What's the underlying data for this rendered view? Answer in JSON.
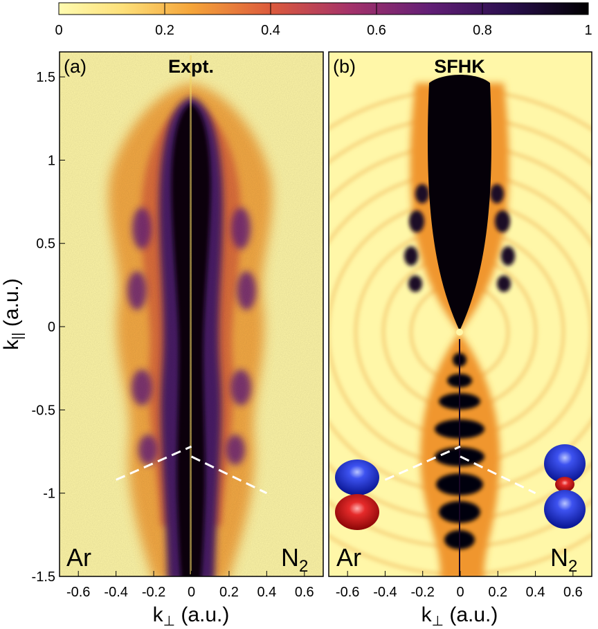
{
  "chart_data": {
    "type": "heatmap",
    "colorbar": {
      "min": 0,
      "max": 1,
      "ticks": [
        "0",
        "0.2",
        "0.4",
        "0.6",
        "0.8",
        "1"
      ],
      "colormap": [
        "#fffbb0",
        "#f4a43a",
        "#d94f3c",
        "#7a2a7e",
        "#2a0f4e",
        "#000000"
      ]
    },
    "y_axis": {
      "label": "k",
      "label_sub": "||",
      "label_unit": " (a.u.)",
      "range": [
        -1.5,
        1.65
      ],
      "ticks": [
        {
          "value": 1.5,
          "label": "1.5"
        },
        {
          "value": 1,
          "label": "1"
        },
        {
          "value": 0.5,
          "label": "0.5"
        },
        {
          "value": 0,
          "label": "0"
        },
        {
          "value": -0.5,
          "label": "-0.5"
        },
        {
          "value": -1,
          "label": "-1"
        },
        {
          "value": -1.5,
          "label": "-1.5"
        }
      ]
    },
    "x_axis": {
      "label": "k",
      "label_sub": "⊥",
      "label_unit": " (a.u.)",
      "range": [
        -0.7,
        0.7
      ],
      "ticks": [
        {
          "value": -0.6,
          "label": "-0.6"
        },
        {
          "value": -0.4,
          "label": "-0.4"
        },
        {
          "value": -0.2,
          "label": "-0.2"
        },
        {
          "value": 0,
          "label": "0"
        },
        {
          "value": 0.2,
          "label": "0.2"
        },
        {
          "value": 0.4,
          "label": "0.4"
        },
        {
          "value": 0.6,
          "label": "0.6"
        }
      ]
    },
    "panels": [
      {
        "letter": "(a)",
        "title": "Expt.",
        "left_species": "Ar",
        "right_species_main": "N",
        "right_species_sub": "2",
        "dashed_lines": [
          [
            [
              -0.4,
              -0.92
            ],
            [
              0,
              -0.72
            ]
          ],
          [
            [
              0,
              -0.78
            ],
            [
              0.4,
              -1.0
            ]
          ]
        ]
      },
      {
        "letter": "(b)",
        "title": "SFHK",
        "left_species": "Ar",
        "right_species_main": "N",
        "right_species_sub": "2",
        "dashed_lines": [
          [
            [
              -0.4,
              -0.92
            ],
            [
              0,
              -0.72
            ]
          ],
          [
            [
              0,
              -0.78
            ],
            [
              0.4,
              -1.0
            ]
          ]
        ]
      }
    ]
  },
  "colors": {
    "background": "#fff7a8",
    "orange": "#f09a32",
    "purple": "#4a1a66",
    "black": "#050008",
    "dash": "#ffffff",
    "orbital_blue": "#1e2fd8",
    "orbital_red": "#d81818"
  }
}
